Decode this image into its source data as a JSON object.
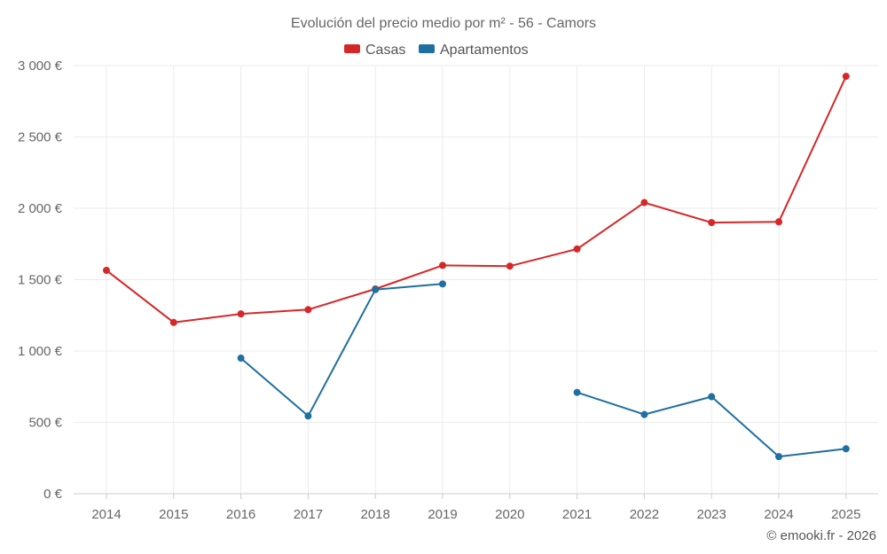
{
  "chart_data": {
    "type": "line",
    "title": "Evolución del precio medio por m² - 56 - Camors",
    "categories": [
      "2014",
      "2015",
      "2016",
      "2017",
      "2018",
      "2019",
      "2020",
      "2021",
      "2022",
      "2023",
      "2024",
      "2025"
    ],
    "series": [
      {
        "name": "Casas",
        "color": "#d62728",
        "values": [
          1565,
          1200,
          1260,
          1290,
          1435,
          1600,
          1595,
          1715,
          2040,
          1900,
          1905,
          2925
        ]
      },
      {
        "name": "Apartamentos",
        "color": "#1f6fa0",
        "values": [
          null,
          null,
          950,
          545,
          1430,
          1470,
          null,
          710,
          555,
          680,
          260,
          315
        ]
      }
    ],
    "ylim": [
      0,
      3000
    ],
    "yticks": [
      0,
      500,
      1000,
      1500,
      2000,
      2500,
      3000
    ],
    "ytick_labels": [
      "0 €",
      "500 €",
      "1 000 €",
      "1 500 €",
      "2 000 €",
      "2 500 €",
      "3 000 €"
    ],
    "xlabel": "",
    "ylabel": "",
    "legend_position": "top-center",
    "grid": true
  },
  "credit": "© emooki.fr - 2026"
}
